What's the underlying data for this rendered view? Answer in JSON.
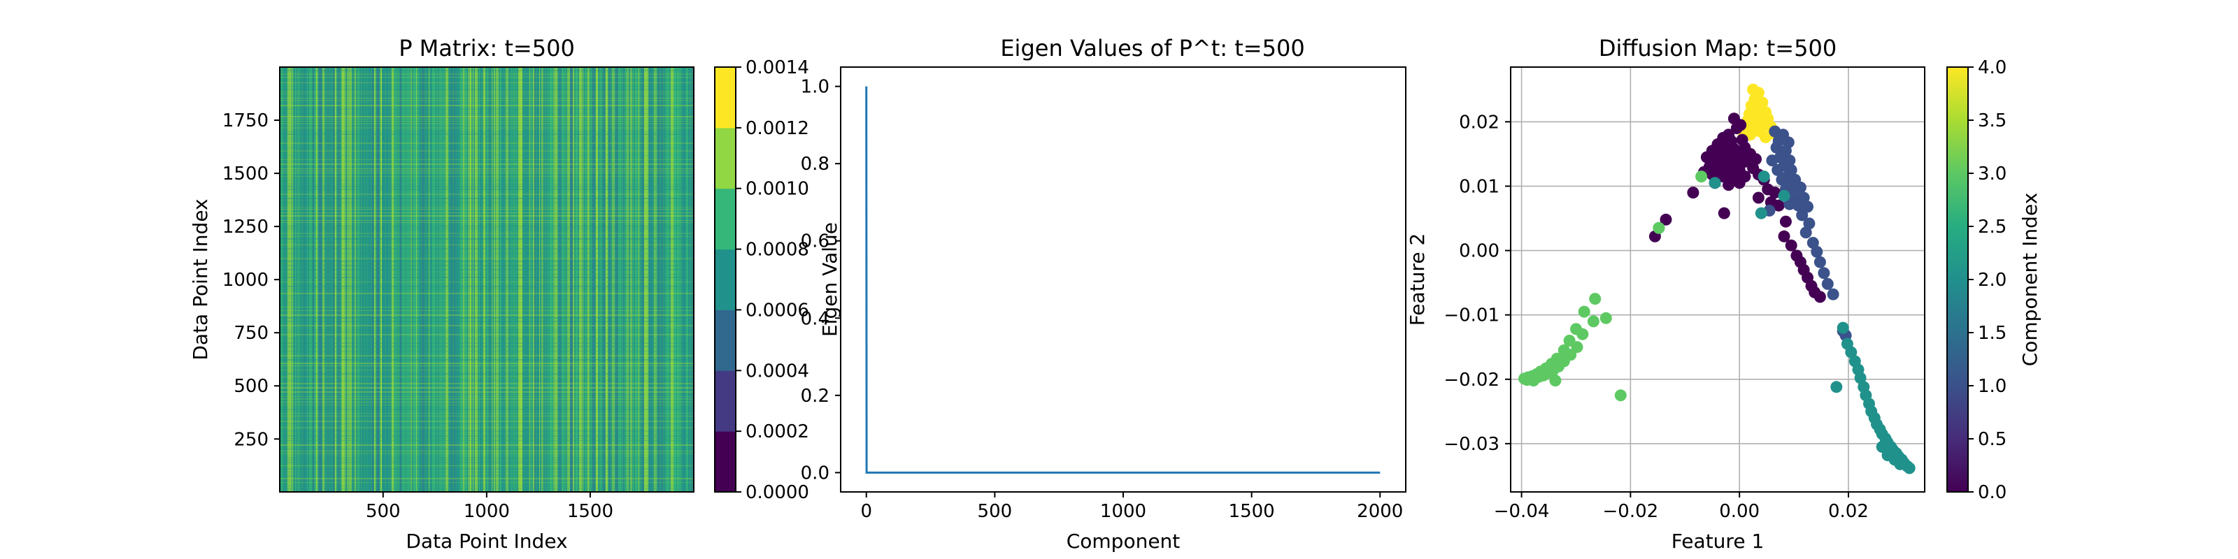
{
  "figure": {
    "background": "#ffffff"
  },
  "colormap": [
    "#440154",
    "#472c7a",
    "#3b518b",
    "#2c718e",
    "#21908d",
    "#27ad81",
    "#5cc863",
    "#aadc32",
    "#fde725"
  ],
  "chart_data": [
    {
      "type": "heatmap",
      "title": "P Matrix: t=500",
      "xlabel": "Data Point Index",
      "ylabel": "Data Point Index",
      "xlim": [
        1,
        2000
      ],
      "ylim": [
        1,
        2000
      ],
      "xticks": [
        500,
        1000,
        1500
      ],
      "yticks": [
        250,
        500,
        750,
        1000,
        1250,
        1500,
        1750
      ],
      "value_range": [
        0.0,
        0.0014
      ],
      "dominant_value_range": [
        0.0008,
        0.0012
      ],
      "colorbar": {
        "ticks": [
          "0.0000",
          "0.0002",
          "0.0004",
          "0.0006",
          "0.0008",
          "0.0010",
          "0.0012",
          "0.0014"
        ],
        "levels": 7,
        "colors": [
          "#440154",
          "#443983",
          "#31688e",
          "#21918c",
          "#35b779",
          "#90d743",
          "#fde725"
        ]
      },
      "grid": false
    },
    {
      "type": "line",
      "title": "Eigen Values of P^t: t=500",
      "xlabel": "Component",
      "ylabel": "Eigen Value",
      "xlim": [
        -100,
        2100
      ],
      "ylim": [
        -0.05,
        1.05
      ],
      "xticks": [
        0,
        500,
        1000,
        1500,
        2000
      ],
      "yticks": [
        "0.0",
        "0.2",
        "0.4",
        "0.6",
        "0.8",
        "1.0"
      ],
      "series": [
        {
          "x": [
            0,
            1,
            2,
            2000
          ],
          "y": [
            1.0,
            0.0,
            0.0,
            0.0
          ],
          "color": "#1f77b4"
        }
      ],
      "grid": false
    },
    {
      "type": "scatter",
      "title": "Diffusion Map: t=500",
      "xlabel": "Feature 1",
      "ylabel": "Feature 2",
      "xlim": [
        -0.042,
        0.034
      ],
      "ylim": [
        -0.0375,
        0.0285
      ],
      "xticks": [
        "−0.04",
        "−0.02",
        "0.00",
        "0.02"
      ],
      "yticks": [
        "−0.03",
        "−0.02",
        "−0.01",
        "0.00",
        "0.01",
        "0.02"
      ],
      "grid": true,
      "colorbar": {
        "label": "Component Index",
        "range": [
          0.0,
          4.0
        ],
        "ticks": [
          "0.0",
          "0.5",
          "1.0",
          "1.5",
          "2.0",
          "2.5",
          "3.0",
          "3.5",
          "4.0"
        ]
      },
      "point_color_by_component": [
        "#440154",
        "#3b528b",
        "#21918c",
        "#5ec962",
        "#fde725"
      ],
      "points": [
        [
          0.0025,
          0.025,
          4
        ],
        [
          0.0035,
          0.0245,
          4
        ],
        [
          0.0028,
          0.0235,
          4
        ],
        [
          0.0042,
          0.023,
          4
        ],
        [
          0.0022,
          0.0225,
          4
        ],
        [
          0.0036,
          0.022,
          4
        ],
        [
          0.0048,
          0.0215,
          4
        ],
        [
          0.0018,
          0.0212,
          4
        ],
        [
          0.003,
          0.0208,
          4
        ],
        [
          0.0052,
          0.0205,
          4
        ],
        [
          0.0015,
          0.0202,
          4
        ],
        [
          0.0044,
          0.0198,
          4
        ],
        [
          0.0025,
          0.0195,
          4
        ],
        [
          0.0058,
          0.0192,
          4
        ],
        [
          0.0012,
          0.0188,
          4
        ],
        [
          0.0038,
          0.0185,
          4
        ],
        [
          0.0062,
          0.0182,
          4
        ],
        [
          0.002,
          0.018,
          4
        ],
        [
          0.0008,
          0.0178,
          4
        ],
        [
          0.0048,
          0.0176,
          4
        ],
        [
          -0.001,
          0.0205,
          0
        ],
        [
          -0.0005,
          0.019,
          0
        ],
        [
          0.0002,
          0.0195,
          0
        ],
        [
          -0.002,
          0.018,
          0
        ],
        [
          -0.003,
          0.0175,
          0
        ],
        [
          -0.0015,
          0.017,
          0
        ],
        [
          0.0005,
          0.0172,
          0
        ],
        [
          -0.004,
          0.0165,
          0
        ],
        [
          -0.0025,
          0.016,
          0
        ],
        [
          -0.001,
          0.0158,
          0
        ],
        [
          0.001,
          0.016,
          0
        ],
        [
          -0.005,
          0.0155,
          0
        ],
        [
          -0.0035,
          0.015,
          0
        ],
        [
          -0.002,
          0.0148,
          0
        ],
        [
          0.0,
          0.0148,
          0
        ],
        [
          0.002,
          0.015,
          0
        ],
        [
          -0.006,
          0.0145,
          0
        ],
        [
          -0.0045,
          0.014,
          0
        ],
        [
          -0.003,
          0.0138,
          0
        ],
        [
          -0.001,
          0.0135,
          0
        ],
        [
          0.001,
          0.0138,
          0
        ],
        [
          0.003,
          0.0142,
          0
        ],
        [
          -0.0055,
          0.013,
          0
        ],
        [
          -0.004,
          0.0128,
          0
        ],
        [
          -0.002,
          0.0125,
          0
        ],
        [
          0.0,
          0.0125,
          0
        ],
        [
          0.0025,
          0.0128,
          0
        ],
        [
          -0.0065,
          0.0122,
          0
        ],
        [
          -0.005,
          0.0118,
          0
        ],
        [
          -0.003,
          0.0115,
          0
        ],
        [
          -0.001,
          0.0112,
          0
        ],
        [
          0.001,
          0.0115,
          0
        ],
        [
          0.0035,
          0.0118,
          0
        ],
        [
          -0.0045,
          0.0105,
          0
        ],
        [
          -0.002,
          0.0102,
          0
        ],
        [
          0.0,
          0.0105,
          0
        ],
        [
          0.0045,
          0.011,
          0
        ],
        [
          0.0052,
          0.0095,
          0
        ],
        [
          -0.0085,
          0.009,
          0
        ],
        [
          0.0065,
          0.009,
          0
        ],
        [
          0.0035,
          0.0082,
          0
        ],
        [
          0.0058,
          0.0075,
          0
        ],
        [
          0.0072,
          0.007,
          0
        ],
        [
          -0.0028,
          0.0058,
          0
        ],
        [
          0.0085,
          0.0045,
          0
        ],
        [
          -0.0135,
          0.0048,
          0
        ],
        [
          0.0082,
          0.0022,
          0
        ],
        [
          -0.0155,
          0.0022,
          0
        ],
        [
          0.0095,
          0.0008,
          0
        ],
        [
          0.0105,
          -0.0008,
          0
        ],
        [
          0.0112,
          -0.0018,
          0
        ],
        [
          0.0118,
          -0.003,
          0
        ],
        [
          0.0125,
          -0.0042,
          0
        ],
        [
          0.0132,
          -0.0055,
          0
        ],
        [
          0.0138,
          -0.0065,
          0
        ],
        [
          0.0148,
          -0.0072,
          0
        ],
        [
          0.0065,
          0.0185,
          1
        ],
        [
          0.008,
          0.018,
          1
        ],
        [
          0.0072,
          0.017,
          1
        ],
        [
          0.009,
          0.0168,
          1
        ],
        [
          0.0068,
          0.016,
          1
        ],
        [
          0.0085,
          0.0155,
          1
        ],
        [
          0.0075,
          0.0145,
          1
        ],
        [
          0.0092,
          0.014,
          1
        ],
        [
          0.006,
          0.014,
          1
        ],
        [
          0.0082,
          0.0132,
          1
        ],
        [
          0.0095,
          0.0125,
          1
        ],
        [
          0.007,
          0.0125,
          1
        ],
        [
          0.0088,
          0.0115,
          1
        ],
        [
          0.0102,
          0.011,
          1
        ],
        [
          0.0078,
          0.011,
          1
        ],
        [
          0.0095,
          0.01,
          1
        ],
        [
          0.0112,
          0.0098,
          1
        ],
        [
          0.0085,
          0.0095,
          1
        ],
        [
          0.01,
          0.0085,
          1
        ],
        [
          0.0118,
          0.0082,
          1
        ],
        [
          0.0055,
          0.0062,
          1
        ],
        [
          0.0108,
          0.007,
          1
        ],
        [
          0.0125,
          0.0068,
          1
        ],
        [
          0.0092,
          0.0072,
          1
        ],
        [
          0.0115,
          0.0055,
          1
        ],
        [
          0.0128,
          0.0042,
          1
        ],
        [
          0.0122,
          0.0028,
          1
        ],
        [
          0.0135,
          0.0012,
          1
        ],
        [
          0.0142,
          -0.0002,
          1
        ],
        [
          0.0148,
          -0.0018,
          1
        ],
        [
          0.0155,
          -0.0035,
          1
        ],
        [
          0.0162,
          -0.0052,
          1
        ],
        [
          0.0172,
          -0.0068,
          1
        ],
        [
          0.019,
          -0.0125,
          1
        ],
        [
          0.0195,
          -0.0132,
          1
        ],
        [
          0.0045,
          0.0115,
          2
        ],
        [
          -0.0045,
          0.0105,
          2
        ],
        [
          0.0082,
          0.0085,
          2
        ],
        [
          0.004,
          0.0058,
          2
        ],
        [
          -0.0148,
          0.0035,
          2
        ],
        [
          0.019,
          -0.012,
          2
        ],
        [
          0.0198,
          -0.0145,
          2
        ],
        [
          0.0205,
          -0.0158,
          2
        ],
        [
          0.0212,
          -0.0172,
          2
        ],
        [
          0.0218,
          -0.0185,
          2
        ],
        [
          0.0178,
          -0.0212,
          2
        ],
        [
          0.0222,
          -0.0198,
          2
        ],
        [
          0.0228,
          -0.0212,
          2
        ],
        [
          0.0232,
          -0.0225,
          2
        ],
        [
          0.0238,
          -0.0238,
          2
        ],
        [
          0.0242,
          -0.025,
          2
        ],
        [
          0.0248,
          -0.026,
          2
        ],
        [
          0.0252,
          -0.027,
          2
        ],
        [
          0.0258,
          -0.0278,
          2
        ],
        [
          0.0262,
          -0.0285,
          2
        ],
        [
          0.0268,
          -0.0292,
          2
        ],
        [
          0.0272,
          -0.0298,
          2
        ],
        [
          0.0278,
          -0.0305,
          2
        ],
        [
          0.0282,
          -0.031,
          2
        ],
        [
          0.0288,
          -0.0315,
          2
        ],
        [
          0.0292,
          -0.032,
          2
        ],
        [
          0.0298,
          -0.0325,
          2
        ],
        [
          0.0302,
          -0.033,
          2
        ],
        [
          0.0308,
          -0.0335,
          2
        ],
        [
          0.0312,
          -0.0338,
          2
        ],
        [
          0.0262,
          -0.0305,
          2
        ],
        [
          0.0272,
          -0.0318,
          2
        ],
        [
          0.0285,
          -0.0325,
          2
        ],
        [
          0.0295,
          -0.0332,
          2
        ],
        [
          -0.007,
          0.0115,
          3
        ],
        [
          -0.0148,
          0.0035,
          3
        ],
        [
          -0.0265,
          -0.0075,
          3
        ],
        [
          -0.0285,
          -0.0095,
          3
        ],
        [
          -0.0245,
          -0.0105,
          3
        ],
        [
          -0.0268,
          -0.011,
          3
        ],
        [
          -0.03,
          -0.0122,
          3
        ],
        [
          -0.0288,
          -0.013,
          3
        ],
        [
          -0.0312,
          -0.014,
          3
        ],
        [
          -0.0298,
          -0.015,
          3
        ],
        [
          -0.0322,
          -0.0155,
          3
        ],
        [
          -0.031,
          -0.0162,
          3
        ],
        [
          -0.0335,
          -0.0168,
          3
        ],
        [
          -0.0322,
          -0.0172,
          3
        ],
        [
          -0.0345,
          -0.0176,
          3
        ],
        [
          -0.0332,
          -0.018,
          3
        ],
        [
          -0.0355,
          -0.0183,
          3
        ],
        [
          -0.0342,
          -0.0186,
          3
        ],
        [
          -0.0365,
          -0.0188,
          3
        ],
        [
          -0.0352,
          -0.019,
          3
        ],
        [
          -0.0372,
          -0.0192,
          3
        ],
        [
          -0.036,
          -0.0194,
          3
        ],
        [
          -0.038,
          -0.0195,
          3
        ],
        [
          -0.0368,
          -0.0196,
          3
        ],
        [
          -0.0388,
          -0.0197,
          3
        ],
        [
          -0.0375,
          -0.0198,
          3
        ],
        [
          -0.0395,
          -0.0199,
          3
        ],
        [
          -0.0385,
          -0.02,
          3
        ],
        [
          -0.039,
          -0.0201,
          3
        ],
        [
          -0.0378,
          -0.0202,
          3
        ],
        [
          -0.0338,
          -0.0202,
          3
        ],
        [
          -0.0218,
          -0.0225,
          3
        ]
      ]
    }
  ]
}
